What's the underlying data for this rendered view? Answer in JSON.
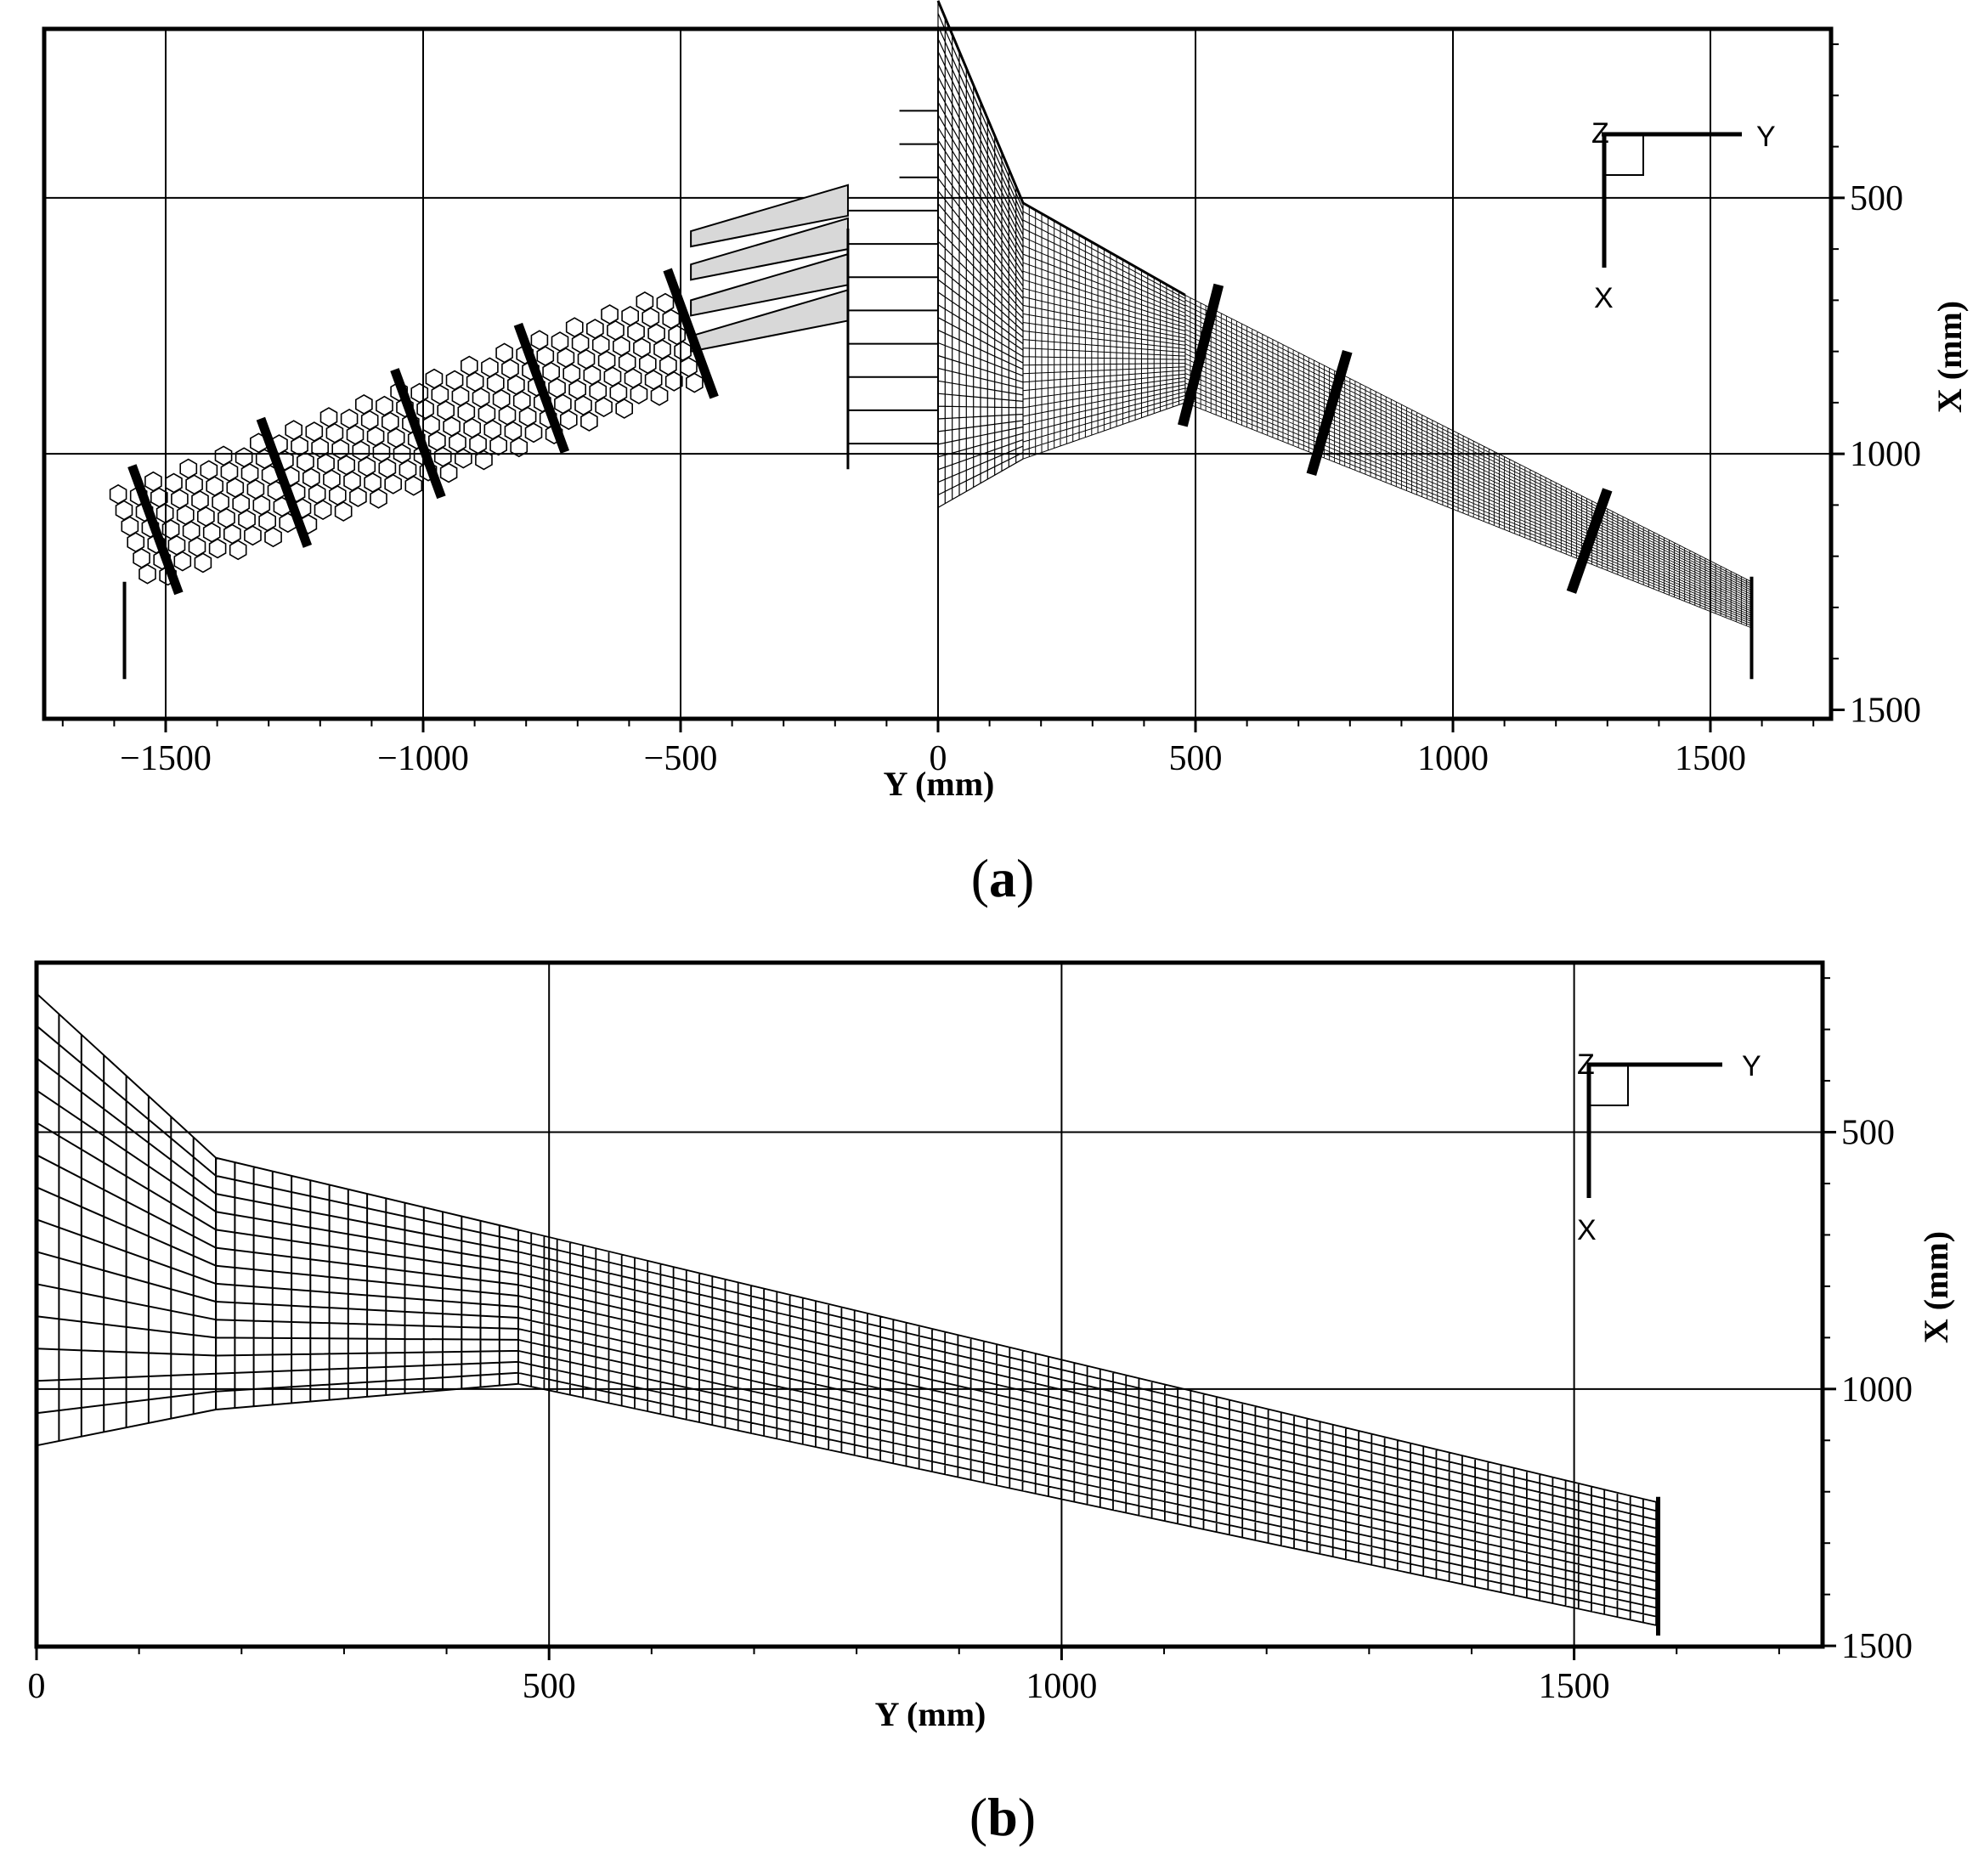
{
  "panels": [
    {
      "id": "a",
      "label": "a",
      "x_axis": {
        "title": "Y (mm)",
        "ticks": [
          "-1500",
          "-1000",
          "-500",
          "0",
          "500",
          "1000",
          "1500"
        ],
        "range": [
          -1740,
          1740
        ]
      },
      "y_axis": {
        "title": "X (mm)",
        "ticks": [
          "500",
          "1000",
          "1500"
        ],
        "range": [
          170,
          1500
        ]
      },
      "triad": {
        "z": "Z",
        "y": "Y",
        "x": "X"
      }
    },
    {
      "id": "b",
      "label": "b",
      "x_axis": {
        "title": "Y (mm)",
        "ticks": [
          "0",
          "500",
          "1000",
          "1500"
        ],
        "range": [
          0,
          1740
        ]
      },
      "y_axis": {
        "title": "X (mm)",
        "ticks": [
          "500",
          "1000",
          "1500"
        ],
        "range": [
          170,
          1500
        ]
      },
      "triad": {
        "z": "Z",
        "y": "Y",
        "x": "X"
      }
    }
  ],
  "colors": {
    "line": "#000000",
    "background": "#ffffff"
  }
}
